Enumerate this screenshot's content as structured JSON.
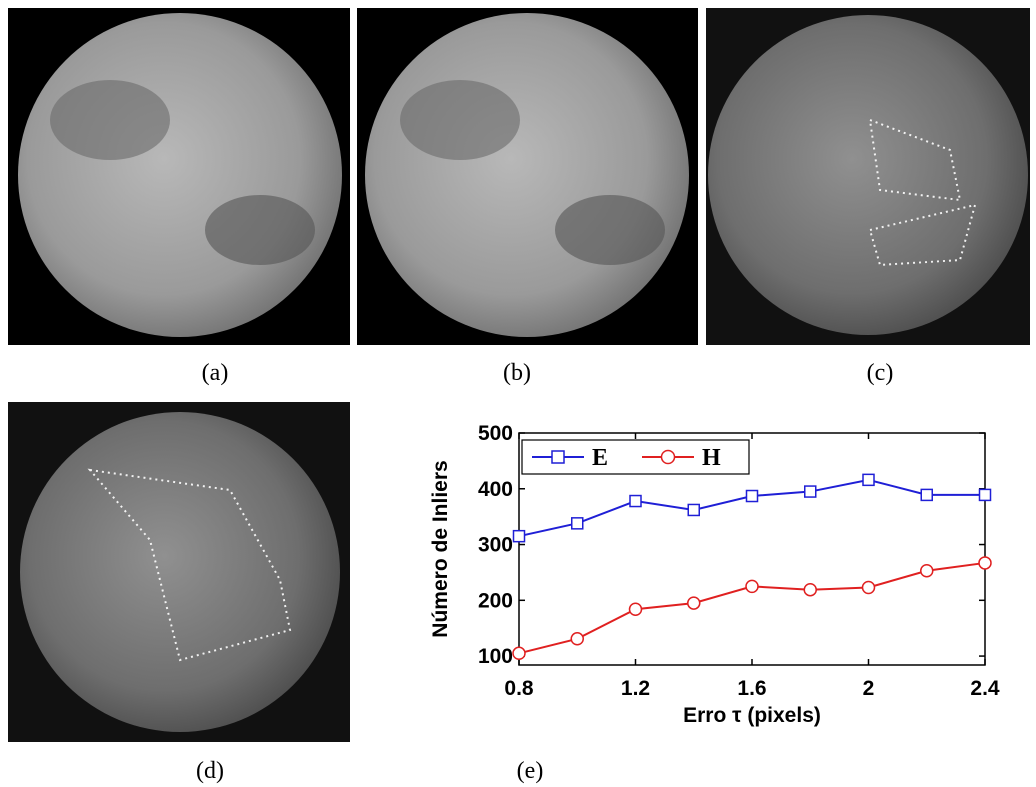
{
  "captions": [
    "(a)",
    "(b)",
    "(c)",
    "(d)",
    "(e)"
  ],
  "chart_data": {
    "type": "line",
    "xlabel": "Erro τ (pixels)",
    "ylabel": "Número de Inliers",
    "x": [
      0.8,
      1.0,
      1.2,
      1.4,
      1.6,
      1.8,
      2.0,
      2.2,
      2.4
    ],
    "series": [
      {
        "name": "E",
        "color": "#1f1fd6",
        "marker": "square",
        "values": [
          315,
          338,
          378,
          362,
          387,
          395,
          416,
          389,
          389
        ]
      },
      {
        "name": "H",
        "color": "#e02020",
        "marker": "circle",
        "values": [
          105,
          131,
          184,
          195,
          225,
          219,
          223,
          253,
          267
        ]
      }
    ],
    "xlim": [
      0.8,
      2.4
    ],
    "xticks": [
      0.8,
      1.2,
      1.6,
      2,
      2.4
    ],
    "ylim": [
      84,
      500
    ],
    "yticks": [
      100,
      200,
      300,
      400,
      500
    ],
    "legend": "upper-left"
  }
}
